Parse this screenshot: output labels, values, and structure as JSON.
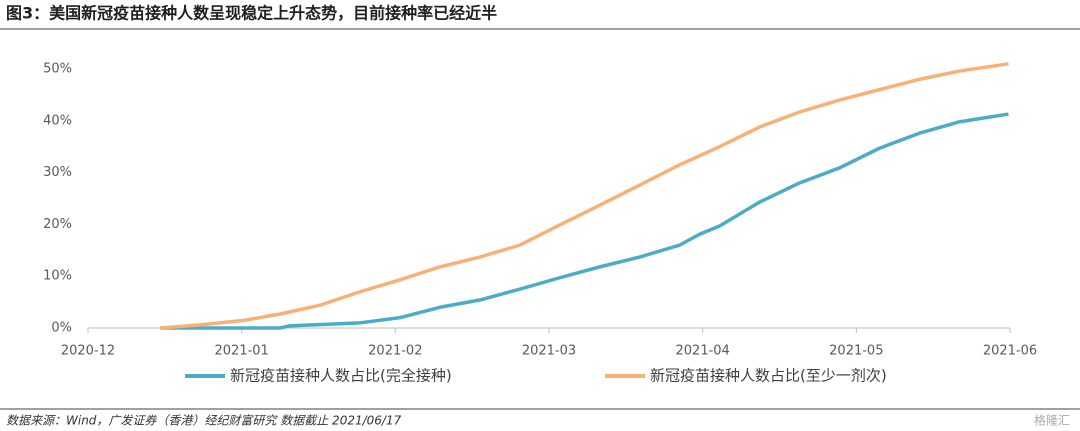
{
  "chart_data": {
    "type": "line",
    "title": "图3：美国新冠疫苗接种人数呈现稳定上升态势，目前接种率已经近半",
    "source": "数据来源：Wind，广发证券（香港）经纪财富研究    数据截止 2021/06/17",
    "watermark": "格隆汇",
    "xlim": [
      0,
      6
    ],
    "xticks": [
      {
        "value": 0,
        "label": "2020-12"
      },
      {
        "value": 1,
        "label": "2021-01"
      },
      {
        "value": 2,
        "label": "2021-02"
      },
      {
        "value": 3,
        "label": "2021-03"
      },
      {
        "value": 4,
        "label": "2021-04"
      },
      {
        "value": 5,
        "label": "2021-05"
      },
      {
        "value": 6,
        "label": "2021-06"
      }
    ],
    "ylim": [
      0,
      50
    ],
    "yticks": [
      {
        "value": 0,
        "label": "0%"
      },
      {
        "value": 10,
        "label": "10%"
      },
      {
        "value": 20,
        "label": "20%"
      },
      {
        "value": 30,
        "label": "30%"
      },
      {
        "value": 40,
        "label": "40%"
      },
      {
        "value": 50,
        "label": "50%"
      }
    ],
    "grid": false,
    "legend": "bottom",
    "series": [
      {
        "name": "新冠疫苗接种人数占比(完全接种)",
        "color": "#4bacc6",
        "x": [
          0.47,
          1.25,
          1.31,
          1.77,
          2.03,
          2.29,
          2.55,
          2.81,
          3.07,
          3.33,
          3.59,
          3.85,
          3.98,
          4.11,
          4.37,
          4.63,
          4.89,
          5.15,
          5.41,
          5.67,
          5.99
        ],
        "values": [
          0,
          0,
          0.4,
          1,
          2,
          4,
          5.4,
          7.5,
          9.7,
          11.8,
          13.7,
          16,
          18.1,
          19.7,
          24.3,
          28,
          30.9,
          34.7,
          37.6,
          39.8,
          41.3
        ]
      },
      {
        "name": "新冠疫苗接种人数占比(至少一剂次)",
        "color": "#f9b074",
        "x": [
          0.47,
          0.73,
          1.02,
          1.25,
          1.51,
          1.77,
          2.03,
          2.29,
          2.55,
          2.81,
          3.07,
          3.33,
          3.59,
          3.85,
          4.11,
          4.37,
          4.63,
          4.89,
          5.15,
          5.41,
          5.67,
          5.99
        ],
        "values": [
          0,
          0.6,
          1.5,
          2.7,
          4.4,
          7,
          9.3,
          11.8,
          13.7,
          16,
          19.9,
          23.7,
          27.6,
          31.5,
          35,
          38.8,
          41.7,
          44,
          46,
          48,
          49.6,
          51
        ]
      }
    ]
  }
}
